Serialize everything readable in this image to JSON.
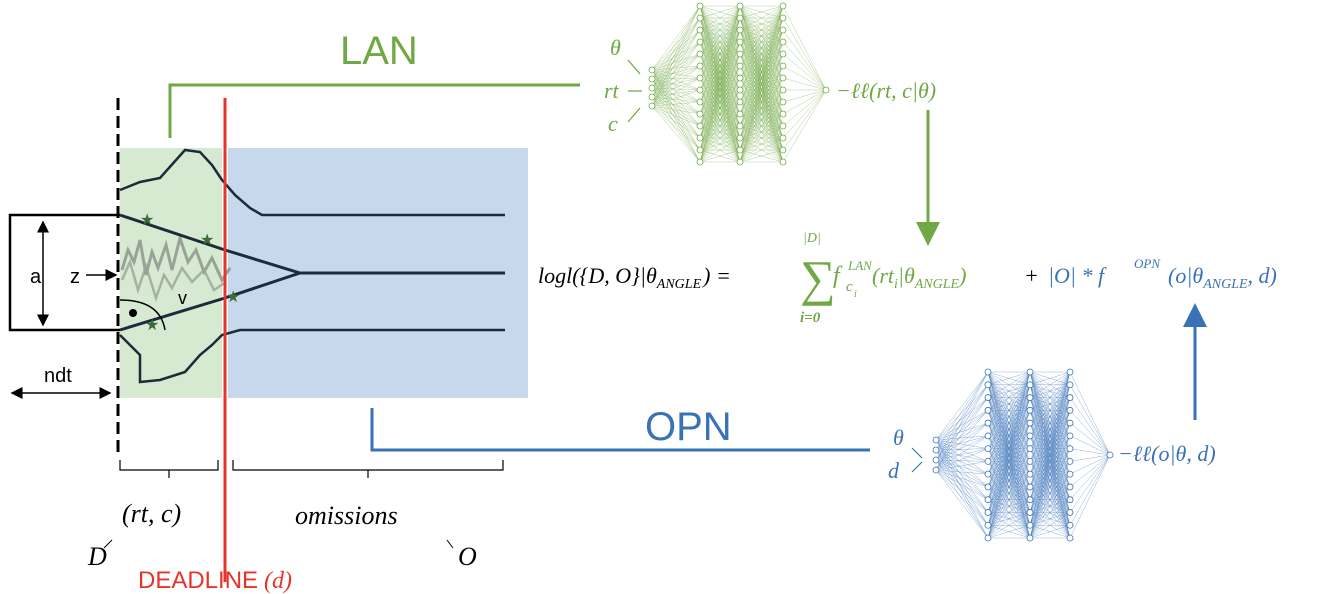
{
  "lan": {
    "label": "LAN",
    "inputs": [
      "θ",
      "rt",
      "c"
    ],
    "output": "−ℓℓ(rt, c|θ)"
  },
  "opn": {
    "label": "OPN",
    "inputs": [
      "θ",
      "d"
    ],
    "output": "−ℓℓ(o|θ, d)"
  },
  "formula": {
    "lhs": "logl({D, O}|θ",
    "lhs_sub": "ANGLE",
    "lhs_end": ") =",
    "sum_sign": "∑",
    "sum_top": "|D|",
    "sum_bottom": "i=0",
    "lan_f": "f",
    "lan_sup": "LAN",
    "lan_sub": "c",
    "lan_sub_index": "i",
    "lan_arg": "(rt",
    "lan_arg_sub": "i",
    "lan_arg_mid": "|θ",
    "lan_arg_mid_sub": "ANGLE",
    "lan_end": ")",
    "plus": "+",
    "opn_count": "|O| * f",
    "opn_sup": "OPN",
    "opn_arg": "(o|θ",
    "opn_arg_sub": "ANGLE",
    "opn_end": ", d)"
  },
  "model": {
    "boundary_separation": "a",
    "starting_point": "z",
    "drift": "v",
    "non_decision_time": "ndt"
  },
  "responses": {
    "observed": "(rt, c)",
    "observed_set": "D",
    "omitted": "omissions",
    "omitted_set": "O"
  },
  "deadline": {
    "label": "DEADLINE",
    "symbol": "(d)"
  }
}
